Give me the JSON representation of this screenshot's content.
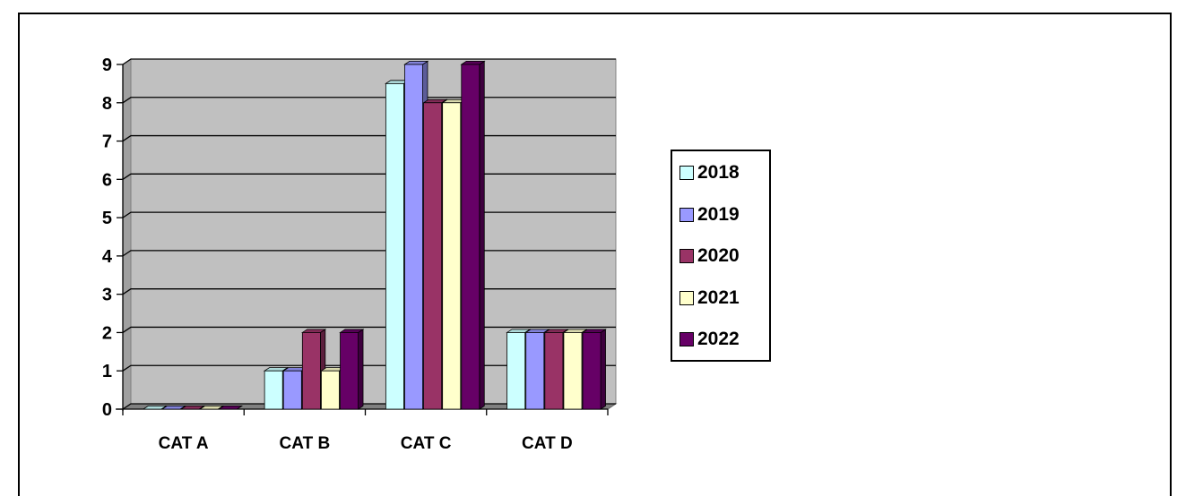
{
  "chart_data": {
    "type": "bar",
    "style": "3d-clustered-column",
    "categories": [
      "CAT A",
      "CAT B",
      "CAT C",
      "CAT D"
    ],
    "series": [
      {
        "name": "2018",
        "color": "#ccffff",
        "values": [
          0,
          1,
          8.5,
          2
        ]
      },
      {
        "name": "2019",
        "color": "#9999ff",
        "values": [
          0,
          1,
          9,
          2
        ]
      },
      {
        "name": "2020",
        "color": "#993366",
        "values": [
          0,
          2,
          8,
          2
        ]
      },
      {
        "name": "2021",
        "color": "#ffffcc",
        "values": [
          0,
          1,
          8,
          2
        ]
      },
      {
        "name": "2022",
        "color": "#660066",
        "values": [
          0,
          2,
          9,
          2
        ]
      }
    ],
    "yticks": [
      0,
      1,
      2,
      3,
      4,
      5,
      6,
      7,
      8,
      9
    ],
    "ylim": [
      0,
      9
    ],
    "grid": true,
    "plot_background": "#c0c0c0",
    "legend_position": "right"
  }
}
